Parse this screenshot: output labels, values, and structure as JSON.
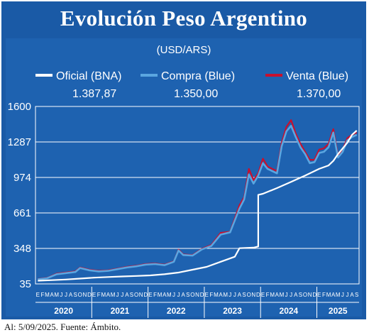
{
  "header": {
    "title": "Evolución Peso Argentino",
    "subtitle": "(USD/ARS)"
  },
  "legend": [
    {
      "label": "Oficial (BNA)",
      "value": "1.387,87",
      "color": "#ffffff"
    },
    {
      "label": "Compra (Blue)",
      "value": "1.350,00",
      "color": "#5aa6e0"
    },
    {
      "label": "Venta (Blue)",
      "value": "1.370,00",
      "color": "#c8102e"
    }
  ],
  "footer": {
    "source": "Al: 5/09/2025. Fuente: Ámbito."
  },
  "chart_data": {
    "type": "line",
    "title": "Evolución Peso Argentino",
    "subtitle": "(USD/ARS)",
    "x_unit": "month",
    "x_range": [
      "2020-01",
      "2025-09"
    ],
    "ylim": [
      35,
      1600
    ],
    "y_ticks": [
      35,
      348,
      661,
      974,
      1287,
      1600
    ],
    "y_tick_labels": [
      "35",
      "348",
      "661",
      "974",
      "1287",
      "1600"
    ],
    "x_month_labels": [
      "E",
      "F",
      "M",
      "A",
      "M",
      "J",
      "J",
      "A",
      "S",
      "O",
      "N",
      "D"
    ],
    "x_month_labels_2025": [
      "E",
      "F",
      "M",
      "A",
      "M",
      "J",
      "J",
      "A",
      "S"
    ],
    "years": [
      "2020",
      "2021",
      "2022",
      "2023",
      "2024",
      "2025"
    ],
    "grid": true,
    "legend_position": "top",
    "series": [
      {
        "name": "Oficial (BNA)",
        "color": "#ffffff",
        "points": [
          [
            "2020-01",
            63
          ],
          [
            "2020-04",
            68
          ],
          [
            "2020-07",
            74
          ],
          [
            "2020-10",
            82
          ],
          [
            "2021-01",
            90
          ],
          [
            "2021-04",
            96
          ],
          [
            "2021-07",
            101
          ],
          [
            "2021-10",
            105
          ],
          [
            "2022-01",
            110
          ],
          [
            "2022-04",
            120
          ],
          [
            "2022-07",
            135
          ],
          [
            "2022-10",
            160
          ],
          [
            "2023-01",
            185
          ],
          [
            "2023-04",
            230
          ],
          [
            "2023-07",
            275
          ],
          [
            "2023-08",
            350
          ],
          [
            "2023-11",
            355
          ],
          [
            "2023-12",
            365
          ],
          [
            "2023-12",
            820
          ],
          [
            "2024-01",
            830
          ],
          [
            "2024-04",
            880
          ],
          [
            "2024-07",
            935
          ],
          [
            "2024-10",
            990
          ],
          [
            "2025-01",
            1050
          ],
          [
            "2025-03",
            1080
          ],
          [
            "2025-04",
            1120
          ],
          [
            "2025-05",
            1180
          ],
          [
            "2025-06",
            1230
          ],
          [
            "2025-07",
            1280
          ],
          [
            "2025-08",
            1350
          ],
          [
            "2025-09",
            1387.87
          ]
        ]
      },
      {
        "name": "Compra (Blue)",
        "color": "#5aa6e0",
        "points": [
          [
            "2020-01",
            75
          ],
          [
            "2020-03",
            85
          ],
          [
            "2020-05",
            120
          ],
          [
            "2020-07",
            130
          ],
          [
            "2020-09",
            140
          ],
          [
            "2020-10",
            175
          ],
          [
            "2020-12",
            155
          ],
          [
            "2021-02",
            145
          ],
          [
            "2021-04",
            150
          ],
          [
            "2021-06",
            165
          ],
          [
            "2021-08",
            180
          ],
          [
            "2021-10",
            190
          ],
          [
            "2021-12",
            205
          ],
          [
            "2022-02",
            210
          ],
          [
            "2022-04",
            200
          ],
          [
            "2022-06",
            230
          ],
          [
            "2022-07",
            330
          ],
          [
            "2022-08",
            290
          ],
          [
            "2022-10",
            285
          ],
          [
            "2022-12",
            340
          ],
          [
            "2023-02",
            370
          ],
          [
            "2023-04",
            470
          ],
          [
            "2023-06",
            490
          ],
          [
            "2023-08",
            700
          ],
          [
            "2023-09",
            780
          ],
          [
            "2023-10",
            1000
          ],
          [
            "2023-11",
            920
          ],
          [
            "2023-12",
            990
          ],
          [
            "2024-01",
            1100
          ],
          [
            "2024-02",
            1050
          ],
          [
            "2024-04",
            1010
          ],
          [
            "2024-05",
            1250
          ],
          [
            "2024-06",
            1380
          ],
          [
            "2024-07",
            1430
          ],
          [
            "2024-08",
            1330
          ],
          [
            "2024-09",
            1240
          ],
          [
            "2024-10",
            1180
          ],
          [
            "2024-11",
            1100
          ],
          [
            "2024-12",
            1110
          ],
          [
            "2025-01",
            1190
          ],
          [
            "2025-02",
            1200
          ],
          [
            "2025-03",
            1240
          ],
          [
            "2025-04",
            1370
          ],
          [
            "2025-05",
            1150
          ],
          [
            "2025-06",
            1200
          ],
          [
            "2025-07",
            1300
          ],
          [
            "2025-08",
            1330
          ],
          [
            "2025-09",
            1350
          ]
        ]
      },
      {
        "name": "Venta (Blue)",
        "color": "#c8102e",
        "points": [
          [
            "2020-01",
            78
          ],
          [
            "2020-03",
            88
          ],
          [
            "2020-05",
            125
          ],
          [
            "2020-07",
            135
          ],
          [
            "2020-09",
            145
          ],
          [
            "2020-10",
            180
          ],
          [
            "2020-12",
            160
          ],
          [
            "2021-02",
            150
          ],
          [
            "2021-04",
            155
          ],
          [
            "2021-06",
            170
          ],
          [
            "2021-08",
            185
          ],
          [
            "2021-10",
            195
          ],
          [
            "2021-12",
            210
          ],
          [
            "2022-02",
            215
          ],
          [
            "2022-04",
            205
          ],
          [
            "2022-06",
            235
          ],
          [
            "2022-07",
            338
          ],
          [
            "2022-08",
            295
          ],
          [
            "2022-10",
            290
          ],
          [
            "2022-12",
            345
          ],
          [
            "2023-02",
            378
          ],
          [
            "2023-04",
            485
          ],
          [
            "2023-06",
            495
          ],
          [
            "2023-08",
            730
          ],
          [
            "2023-09",
            800
          ],
          [
            "2023-10",
            1050
          ],
          [
            "2023-11",
            950
          ],
          [
            "2023-12",
            1010
          ],
          [
            "2024-01",
            1140
          ],
          [
            "2024-02",
            1070
          ],
          [
            "2024-04",
            1030
          ],
          [
            "2024-05",
            1280
          ],
          [
            "2024-06",
            1420
          ],
          [
            "2024-07",
            1480
          ],
          [
            "2024-08",
            1360
          ],
          [
            "2024-09",
            1270
          ],
          [
            "2024-10",
            1200
          ],
          [
            "2024-11",
            1130
          ],
          [
            "2024-12",
            1130
          ],
          [
            "2025-01",
            1220
          ],
          [
            "2025-02",
            1230
          ],
          [
            "2025-03",
            1270
          ],
          [
            "2025-04",
            1400
          ],
          [
            "2025-05",
            1170
          ],
          [
            "2025-06",
            1220
          ],
          [
            "2025-07",
            1320
          ],
          [
            "2025-08",
            1350
          ],
          [
            "2025-09",
            1370
          ]
        ]
      }
    ]
  }
}
